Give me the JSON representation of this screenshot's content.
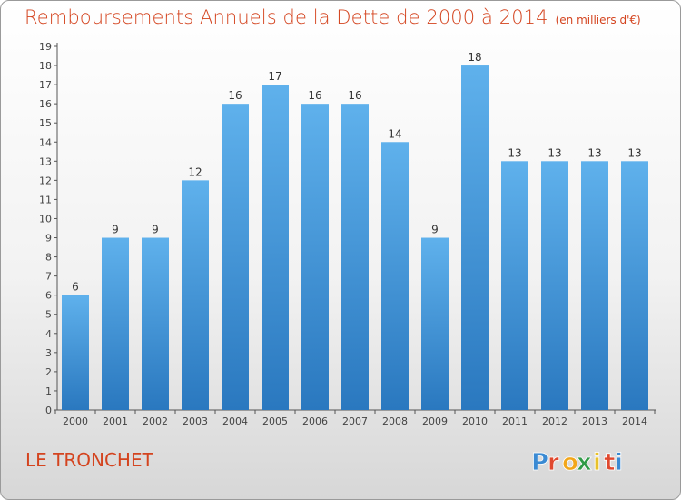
{
  "header": {
    "title": "Remboursements Annuels de la Dette de 2000 à 2014",
    "unit": "(en milliers d'€)"
  },
  "footer": {
    "place": "LE TRONCHET",
    "logo": {
      "letters": [
        "P",
        "r",
        "o",
        "x",
        "i",
        "t",
        "i"
      ],
      "colors": [
        "#3a8ad3",
        "#e0482e",
        "#f2a61a",
        "#2f9a46",
        "#e8c12a",
        "#e0482e",
        "#3a8ad3"
      ]
    }
  },
  "chart_data": {
    "type": "bar",
    "categories": [
      "2000",
      "2001",
      "2002",
      "2003",
      "2004",
      "2005",
      "2006",
      "2007",
      "2008",
      "2009",
      "2010",
      "2011",
      "2012",
      "2013",
      "2014"
    ],
    "values": [
      6,
      9,
      9,
      12,
      16,
      17,
      16,
      16,
      14,
      9,
      18,
      13,
      13,
      13,
      13
    ],
    "ylim": [
      0,
      19
    ],
    "yticks": [
      0,
      1,
      2,
      3,
      4,
      5,
      6,
      7,
      8,
      9,
      10,
      11,
      12,
      13,
      14,
      15,
      16,
      17,
      18,
      19
    ],
    "grid": false,
    "bar_color": "#4a9fe0"
  }
}
